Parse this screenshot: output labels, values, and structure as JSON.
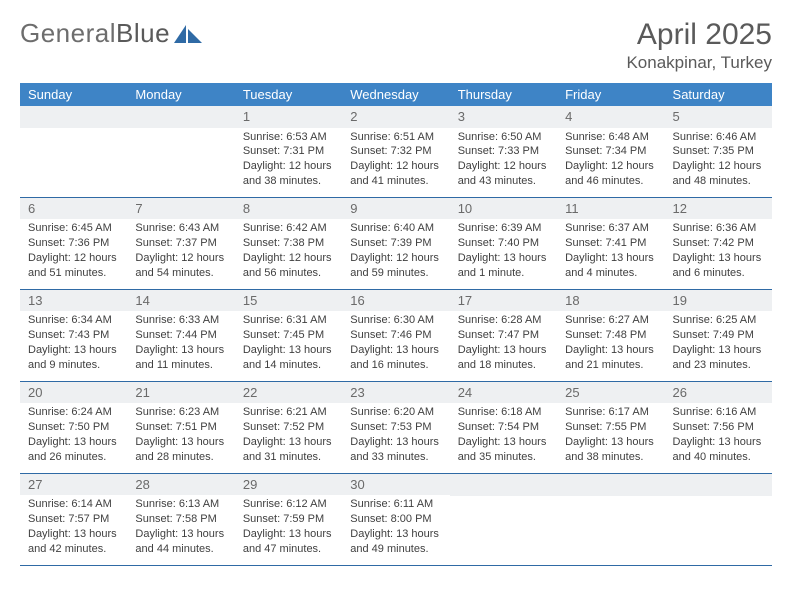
{
  "brand": {
    "part1": "General",
    "part2": "Blue",
    "logo_fill": "#2f6aa5"
  },
  "header": {
    "month": "April 2025",
    "location": "Konakpinar, Turkey"
  },
  "colors": {
    "header_blue": "#3e84c6",
    "band": "#eef0f2",
    "divider": "#2f6aa5"
  },
  "weekdays": [
    "Sunday",
    "Monday",
    "Tuesday",
    "Wednesday",
    "Thursday",
    "Friday",
    "Saturday"
  ],
  "weeks": [
    [
      {
        "n": "",
        "sr": "",
        "ss": "",
        "d1": "",
        "d2": ""
      },
      {
        "n": "",
        "sr": "",
        "ss": "",
        "d1": "",
        "d2": ""
      },
      {
        "n": "1",
        "sr": "Sunrise: 6:53 AM",
        "ss": "Sunset: 7:31 PM",
        "d1": "Daylight: 12 hours",
        "d2": "and 38 minutes."
      },
      {
        "n": "2",
        "sr": "Sunrise: 6:51 AM",
        "ss": "Sunset: 7:32 PM",
        "d1": "Daylight: 12 hours",
        "d2": "and 41 minutes."
      },
      {
        "n": "3",
        "sr": "Sunrise: 6:50 AM",
        "ss": "Sunset: 7:33 PM",
        "d1": "Daylight: 12 hours",
        "d2": "and 43 minutes."
      },
      {
        "n": "4",
        "sr": "Sunrise: 6:48 AM",
        "ss": "Sunset: 7:34 PM",
        "d1": "Daylight: 12 hours",
        "d2": "and 46 minutes."
      },
      {
        "n": "5",
        "sr": "Sunrise: 6:46 AM",
        "ss": "Sunset: 7:35 PM",
        "d1": "Daylight: 12 hours",
        "d2": "and 48 minutes."
      }
    ],
    [
      {
        "n": "6",
        "sr": "Sunrise: 6:45 AM",
        "ss": "Sunset: 7:36 PM",
        "d1": "Daylight: 12 hours",
        "d2": "and 51 minutes."
      },
      {
        "n": "7",
        "sr": "Sunrise: 6:43 AM",
        "ss": "Sunset: 7:37 PM",
        "d1": "Daylight: 12 hours",
        "d2": "and 54 minutes."
      },
      {
        "n": "8",
        "sr": "Sunrise: 6:42 AM",
        "ss": "Sunset: 7:38 PM",
        "d1": "Daylight: 12 hours",
        "d2": "and 56 minutes."
      },
      {
        "n": "9",
        "sr": "Sunrise: 6:40 AM",
        "ss": "Sunset: 7:39 PM",
        "d1": "Daylight: 12 hours",
        "d2": "and 59 minutes."
      },
      {
        "n": "10",
        "sr": "Sunrise: 6:39 AM",
        "ss": "Sunset: 7:40 PM",
        "d1": "Daylight: 13 hours",
        "d2": "and 1 minute."
      },
      {
        "n": "11",
        "sr": "Sunrise: 6:37 AM",
        "ss": "Sunset: 7:41 PM",
        "d1": "Daylight: 13 hours",
        "d2": "and 4 minutes."
      },
      {
        "n": "12",
        "sr": "Sunrise: 6:36 AM",
        "ss": "Sunset: 7:42 PM",
        "d1": "Daylight: 13 hours",
        "d2": "and 6 minutes."
      }
    ],
    [
      {
        "n": "13",
        "sr": "Sunrise: 6:34 AM",
        "ss": "Sunset: 7:43 PM",
        "d1": "Daylight: 13 hours",
        "d2": "and 9 minutes."
      },
      {
        "n": "14",
        "sr": "Sunrise: 6:33 AM",
        "ss": "Sunset: 7:44 PM",
        "d1": "Daylight: 13 hours",
        "d2": "and 11 minutes."
      },
      {
        "n": "15",
        "sr": "Sunrise: 6:31 AM",
        "ss": "Sunset: 7:45 PM",
        "d1": "Daylight: 13 hours",
        "d2": "and 14 minutes."
      },
      {
        "n": "16",
        "sr": "Sunrise: 6:30 AM",
        "ss": "Sunset: 7:46 PM",
        "d1": "Daylight: 13 hours",
        "d2": "and 16 minutes."
      },
      {
        "n": "17",
        "sr": "Sunrise: 6:28 AM",
        "ss": "Sunset: 7:47 PM",
        "d1": "Daylight: 13 hours",
        "d2": "and 18 minutes."
      },
      {
        "n": "18",
        "sr": "Sunrise: 6:27 AM",
        "ss": "Sunset: 7:48 PM",
        "d1": "Daylight: 13 hours",
        "d2": "and 21 minutes."
      },
      {
        "n": "19",
        "sr": "Sunrise: 6:25 AM",
        "ss": "Sunset: 7:49 PM",
        "d1": "Daylight: 13 hours",
        "d2": "and 23 minutes."
      }
    ],
    [
      {
        "n": "20",
        "sr": "Sunrise: 6:24 AM",
        "ss": "Sunset: 7:50 PM",
        "d1": "Daylight: 13 hours",
        "d2": "and 26 minutes."
      },
      {
        "n": "21",
        "sr": "Sunrise: 6:23 AM",
        "ss": "Sunset: 7:51 PM",
        "d1": "Daylight: 13 hours",
        "d2": "and 28 minutes."
      },
      {
        "n": "22",
        "sr": "Sunrise: 6:21 AM",
        "ss": "Sunset: 7:52 PM",
        "d1": "Daylight: 13 hours",
        "d2": "and 31 minutes."
      },
      {
        "n": "23",
        "sr": "Sunrise: 6:20 AM",
        "ss": "Sunset: 7:53 PM",
        "d1": "Daylight: 13 hours",
        "d2": "and 33 minutes."
      },
      {
        "n": "24",
        "sr": "Sunrise: 6:18 AM",
        "ss": "Sunset: 7:54 PM",
        "d1": "Daylight: 13 hours",
        "d2": "and 35 minutes."
      },
      {
        "n": "25",
        "sr": "Sunrise: 6:17 AM",
        "ss": "Sunset: 7:55 PM",
        "d1": "Daylight: 13 hours",
        "d2": "and 38 minutes."
      },
      {
        "n": "26",
        "sr": "Sunrise: 6:16 AM",
        "ss": "Sunset: 7:56 PM",
        "d1": "Daylight: 13 hours",
        "d2": "and 40 minutes."
      }
    ],
    [
      {
        "n": "27",
        "sr": "Sunrise: 6:14 AM",
        "ss": "Sunset: 7:57 PM",
        "d1": "Daylight: 13 hours",
        "d2": "and 42 minutes."
      },
      {
        "n": "28",
        "sr": "Sunrise: 6:13 AM",
        "ss": "Sunset: 7:58 PM",
        "d1": "Daylight: 13 hours",
        "d2": "and 44 minutes."
      },
      {
        "n": "29",
        "sr": "Sunrise: 6:12 AM",
        "ss": "Sunset: 7:59 PM",
        "d1": "Daylight: 13 hours",
        "d2": "and 47 minutes."
      },
      {
        "n": "30",
        "sr": "Sunrise: 6:11 AM",
        "ss": "Sunset: 8:00 PM",
        "d1": "Daylight: 13 hours",
        "d2": "and 49 minutes."
      },
      {
        "n": "",
        "sr": "",
        "ss": "",
        "d1": "",
        "d2": ""
      },
      {
        "n": "",
        "sr": "",
        "ss": "",
        "d1": "",
        "d2": ""
      },
      {
        "n": "",
        "sr": "",
        "ss": "",
        "d1": "",
        "d2": ""
      }
    ]
  ]
}
